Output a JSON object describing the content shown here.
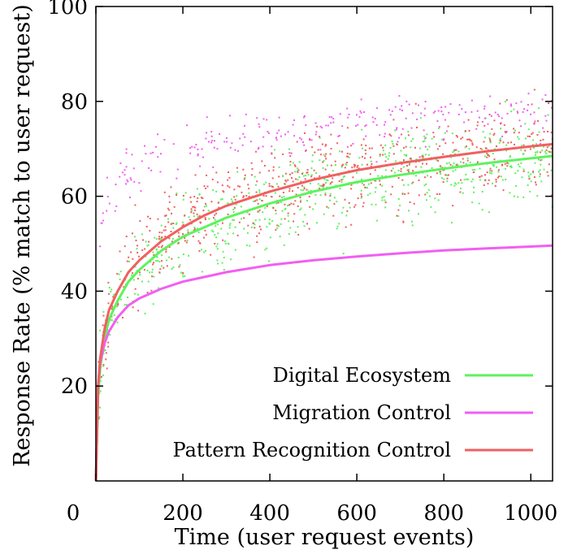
{
  "chart_data": {
    "type": "line",
    "title": "",
    "xlabel": "Time (user request events)",
    "ylabel": "Response Rate (% match to user request)",
    "xlim": [
      0,
      1050
    ],
    "ylim": [
      0,
      100
    ],
    "x_ticks": [
      0,
      200,
      400,
      600,
      800,
      1000
    ],
    "y_ticks": [
      20,
      40,
      60,
      80,
      100
    ],
    "x_tick_labels": [
      "0",
      "200",
      "400",
      "600",
      "800",
      "1000"
    ],
    "y_tick_labels": [
      "20",
      "40",
      "60",
      "80",
      "100"
    ],
    "grid": false,
    "legend_position": "bottom-right",
    "series": [
      {
        "name": "Digital Ecosystem",
        "color": "#5ef25e",
        "x": [
          0,
          5,
          10,
          20,
          30,
          50,
          75,
          100,
          150,
          200,
          250,
          300,
          400,
          500,
          600,
          700,
          800,
          900,
          1000,
          1050
        ],
        "y": [
          0,
          18,
          24,
          30,
          34,
          38,
          42,
          44.5,
          48.5,
          51.5,
          53.5,
          55.5,
          58.5,
          61,
          63,
          64.5,
          65.8,
          67,
          68,
          68.5
        ]
      },
      {
        "name": "Migration Control",
        "color": "#f25ef2",
        "x": [
          0,
          5,
          10,
          20,
          30,
          50,
          75,
          100,
          150,
          200,
          250,
          300,
          400,
          500,
          600,
          700,
          800,
          900,
          1000,
          1050
        ],
        "y": [
          0,
          20,
          25,
          29,
          31.5,
          34.5,
          37,
          38.5,
          40.5,
          42,
          43,
          44,
          45.5,
          46.5,
          47.3,
          48,
          48.6,
          49,
          49.4,
          49.6
        ]
      },
      {
        "name": "Pattern Recognition Control",
        "color": "#f06060",
        "x": [
          0,
          5,
          10,
          20,
          30,
          50,
          75,
          100,
          150,
          200,
          250,
          300,
          400,
          500,
          600,
          700,
          800,
          900,
          1000,
          1050
        ],
        "y": [
          0,
          20,
          26,
          32,
          36,
          40,
          44,
          46.5,
          50.5,
          53.5,
          56,
          58,
          61,
          63.5,
          65.5,
          67,
          68.3,
          69.5,
          70.5,
          71
        ]
      }
    ]
  }
}
